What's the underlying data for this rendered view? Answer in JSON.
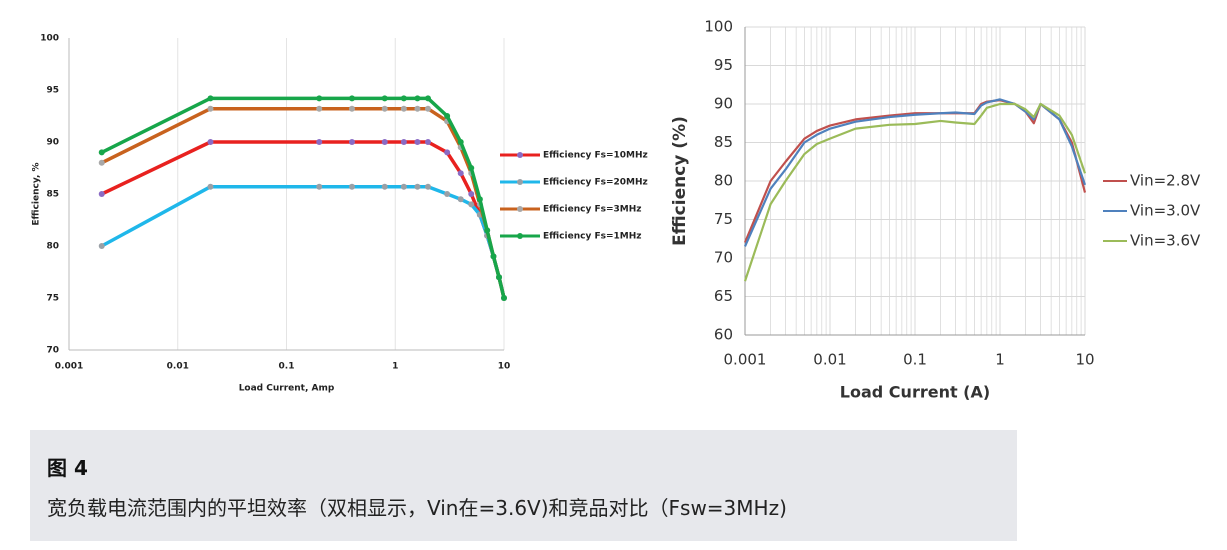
{
  "chart_data": [
    {
      "type": "line",
      "xlabel": "Load Current, Amp",
      "ylabel": "Efficiency, %",
      "log_x": true,
      "grid": "x",
      "minor_grid": false,
      "markers": true,
      "legend": "right",
      "xlim": [
        0.001,
        10
      ],
      "xticks": [
        0.001,
        0.01,
        0.1,
        1,
        10
      ],
      "ylim": [
        70,
        100
      ],
      "yticks": [
        70,
        75,
        80,
        85,
        90,
        95,
        100
      ],
      "x": [
        0.002,
        0.02,
        0.2,
        0.4,
        0.8,
        1.2,
        1.6,
        2,
        3,
        4,
        5,
        6,
        7,
        8,
        9,
        10
      ],
      "series": [
        {
          "name": "Efficiency Fs=10MHz",
          "color": "#e8211f",
          "marker_color": "#8a6bc4",
          "values": [
            85,
            90,
            90,
            90,
            90,
            90,
            90,
            90,
            89,
            87,
            85,
            83,
            81,
            79,
            77,
            75
          ]
        },
        {
          "name": "Efficiency Fs=20MHz",
          "color": "#1fb7ea",
          "marker_color": "#9aa0a6",
          "values": [
            80,
            85.7,
            85.7,
            85.7,
            85.7,
            85.7,
            85.7,
            85.7,
            85,
            84.5,
            84,
            83,
            81,
            79,
            77,
            75
          ]
        },
        {
          "name": "Efficiency Fs=3MHz",
          "color": "#c8621e",
          "marker_color": "#a8a8a8",
          "values": [
            88,
            93.2,
            93.2,
            93.2,
            93.2,
            93.2,
            93.2,
            93.2,
            92,
            89.5,
            87,
            84,
            81.5,
            79,
            77,
            75
          ]
        },
        {
          "name": "Efficiency Fs=1MHz",
          "color": "#17a64a",
          "marker_color": "#17a64a",
          "values": [
            89,
            94.2,
            94.2,
            94.2,
            94.2,
            94.2,
            94.2,
            94.2,
            92.5,
            90,
            87.5,
            84.5,
            81.5,
            79,
            77,
            75
          ]
        }
      ]
    },
    {
      "type": "line",
      "xlabel": "Load Current (A)",
      "ylabel": "Efficiency (%)",
      "log_x": true,
      "grid": "both",
      "minor_grid": true,
      "markers": false,
      "legend": "right",
      "xlim": [
        0.001,
        10
      ],
      "xticks": [
        0.001,
        0.01,
        0.1,
        1,
        10
      ],
      "ylim": [
        60,
        100
      ],
      "yticks": [
        60,
        65,
        70,
        75,
        80,
        85,
        90,
        95,
        100
      ],
      "x": [
        0.001,
        0.002,
        0.003,
        0.005,
        0.007,
        0.01,
        0.02,
        0.05,
        0.1,
        0.2,
        0.3,
        0.5,
        0.6,
        0.7,
        1,
        1.5,
        2,
        2.5,
        3,
        5,
        7,
        10
      ],
      "series": [
        {
          "name": "Vin=2.8V",
          "color": "#c0504d",
          "values": [
            72,
            80,
            82.5,
            85.5,
            86.5,
            87.2,
            88,
            88.5,
            88.8,
            88.8,
            88.8,
            88.8,
            90,
            90.3,
            90.5,
            90,
            89,
            87.5,
            90,
            88,
            85,
            78.5
          ]
        },
        {
          "name": "Vin=3.0V",
          "color": "#4f81bd",
          "values": [
            71.5,
            79,
            81.5,
            85,
            86,
            86.8,
            87.7,
            88.3,
            88.6,
            88.8,
            88.9,
            88.7,
            89.8,
            90.2,
            90.6,
            90,
            89,
            88,
            90,
            88,
            84.5,
            79.5
          ]
        },
        {
          "name": "Vin=3.6V",
          "color": "#9bbb59",
          "values": [
            67,
            77,
            80,
            83.5,
            84.8,
            85.5,
            86.8,
            87.3,
            87.4,
            87.8,
            87.6,
            87.4,
            88.5,
            89.5,
            90,
            90,
            89.3,
            88.3,
            90,
            88.5,
            86,
            81
          ]
        }
      ]
    }
  ],
  "caption": {
    "label": "图 4",
    "text": "宽负载电流范围内的平坦效率（双相显示，Vin在=3.6V)和竞品对比（Fsw=3MHz)"
  }
}
